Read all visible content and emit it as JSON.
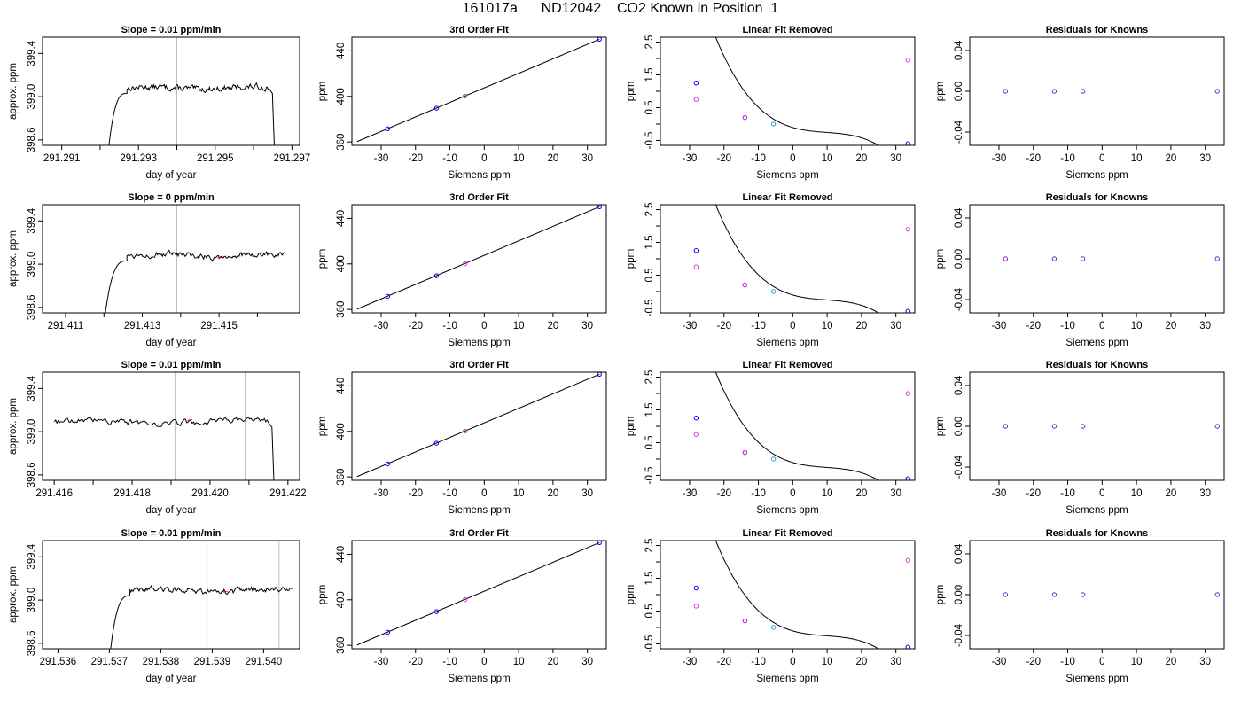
{
  "page_title": "161017a      ND12042    CO2 Known in Position  1",
  "colors": {
    "axis": "#000000",
    "line": "#000000",
    "vline": "#bebebe",
    "blue_point": "#0000ff",
    "cyan_point": "#29a3e0",
    "magenta_point": "#d83bd8",
    "red_point": "#ff0000"
  },
  "chart_data": [
    {
      "type": "line",
      "row": 1,
      "col": 1,
      "title": "Slope =  0.01  ppm/min",
      "xlabel": "day of year",
      "ylabel": "approx. ppm",
      "xlim": [
        291.2905,
        291.2972
      ],
      "ylim": [
        398.55,
        399.55
      ],
      "xticks": [
        "291.291",
        "291.293",
        "291.295",
        "291.297"
      ],
      "xtick_values": [
        291.291,
        291.293,
        291.295,
        291.297
      ],
      "xticks_minor": [
        291.292,
        291.294,
        291.296
      ],
      "yticks": [
        "398.6",
        "399.0",
        "399.4"
      ],
      "ytick_values": [
        398.6,
        399.0,
        399.4
      ],
      "vlines": [
        291.294,
        291.2958
      ],
      "series": [
        {
          "rise_x": [
            291.2922,
            291.2927
          ],
          "plateau_end": 291.2964,
          "drop_x": 291.29655,
          "level": 399.08
        }
      ]
    },
    {
      "type": "scatter",
      "row": 1,
      "col": 2,
      "title": "3rd Order Fit",
      "xlabel": "Siemens ppm",
      "ylabel": "ppm",
      "xlim": [
        -38.5,
        35.5
      ],
      "ylim": [
        357,
        452
      ],
      "xticks": [
        "-30",
        "-20",
        "-10",
        "0",
        "10",
        "20",
        "30"
      ],
      "xtick_values": [
        -30,
        -20,
        -10,
        0,
        10,
        20,
        30
      ],
      "yticks": [
        "360",
        "400",
        "440"
      ],
      "ytick_values": [
        360,
        400,
        440
      ],
      "fit_line": [
        [
          -37,
          360.3
        ],
        [
          33.5,
          450.2
        ]
      ],
      "points": [
        {
          "x": -28.1,
          "y": 371.5,
          "color": "blue"
        },
        {
          "x": -13.9,
          "y": 389.6,
          "color": "blue"
        },
        {
          "x": -5.6,
          "y": 400.2,
          "color": "magenta"
        },
        {
          "x": 33.5,
          "y": 450.2,
          "color": "blue"
        }
      ]
    },
    {
      "type": "scatter",
      "row": 1,
      "col": 3,
      "title": "Linear Fit Removed",
      "xlabel": "Siemens ppm",
      "ylabel": "ppm",
      "xlim": [
        -38.5,
        35.5
      ],
      "ylim": [
        -0.65,
        2.65
      ],
      "xticks": [
        "-30",
        "-20",
        "-10",
        "0",
        "10",
        "20",
        "30"
      ],
      "xtick_values": [
        -30,
        -20,
        -10,
        0,
        10,
        20,
        30
      ],
      "yticks": [
        "-0.5",
        "0.5",
        "1.5",
        "2.5"
      ],
      "ytick_values": [
        -0.5,
        0.5,
        1.5,
        2.5
      ],
      "curve_range": [
        -37,
        33.5
      ],
      "points": [
        {
          "x": -28.1,
          "y": 1.25,
          "color": "blue"
        },
        {
          "x": -28.1,
          "y": 0.75,
          "color": "magenta"
        },
        {
          "x": -13.9,
          "y": 0.2,
          "color": "blue"
        },
        {
          "x": -13.9,
          "y": 0.2,
          "color": "magenta"
        },
        {
          "x": -5.6,
          "y": 0.0,
          "color": "cyan"
        },
        {
          "x": 33.5,
          "y": -0.6,
          "color": "blue"
        },
        {
          "x": 33.5,
          "y": 1.95,
          "color": "magenta"
        }
      ]
    },
    {
      "type": "scatter",
      "row": 1,
      "col": 4,
      "title": "Residuals for Knowns",
      "xlabel": "Siemens ppm",
      "ylabel": "ppm",
      "xlim": [
        -38.5,
        35.5
      ],
      "ylim": [
        -0.053,
        0.053
      ],
      "xticks": [
        "-30",
        "-20",
        "-10",
        "0",
        "10",
        "20",
        "30"
      ],
      "xtick_values": [
        -30,
        -20,
        -10,
        0,
        10,
        20,
        30
      ],
      "yticks": [
        "-0.04",
        "0.00",
        "0.04"
      ],
      "ytick_values": [
        -0.04,
        0.0,
        0.04
      ],
      "points": [
        {
          "x": -28.1,
          "y": 0,
          "color": "purple"
        },
        {
          "x": -13.9,
          "y": 0,
          "color": "purple"
        },
        {
          "x": -5.6,
          "y": 0,
          "color": "purple"
        },
        {
          "x": 33.5,
          "y": 0,
          "color": "purple"
        }
      ]
    },
    {
      "type": "line",
      "row": 2,
      "col": 1,
      "title": "Slope =  0  ppm/min",
      "xlabel": "day of year",
      "ylabel": "approx. ppm",
      "xlim": [
        291.4104,
        291.4171
      ],
      "ylim": [
        398.55,
        399.55
      ],
      "xticks": [
        "291.411",
        "291.413",
        "291.415"
      ],
      "xtick_values": [
        291.411,
        291.413,
        291.415
      ],
      "xticks_minor": [
        291.412,
        291.414,
        291.416
      ],
      "yticks": [
        "398.6",
        "399.0",
        "399.4"
      ],
      "ytick_values": [
        398.6,
        399.0,
        399.4
      ],
      "vlines": [
        291.4139,
        291.4157
      ],
      "series": [
        {
          "rise_x": [
            291.412,
            291.4126
          ],
          "plateau_end": 291.4167,
          "drop_x": null,
          "level": 399.08
        }
      ]
    },
    {
      "type": "scatter",
      "row": 2,
      "col": 2,
      "title": "3rd Order Fit",
      "xlabel": "Siemens ppm",
      "ylabel": "ppm",
      "xlim": [
        -38.5,
        35.5
      ],
      "ylim": [
        357,
        452
      ],
      "xticks": [
        "-30",
        "-20",
        "-10",
        "0",
        "10",
        "20",
        "30"
      ],
      "xtick_values": [
        -30,
        -20,
        -10,
        0,
        10,
        20,
        30
      ],
      "yticks": [
        "360",
        "400",
        "440"
      ],
      "ytick_values": [
        360,
        400,
        440
      ],
      "fit_line": [
        [
          -37,
          360.3
        ],
        [
          33.5,
          450.2
        ]
      ],
      "points": [
        {
          "x": -28.1,
          "y": 371.5,
          "color": "blue"
        },
        {
          "x": -13.9,
          "y": 389.6,
          "color": "blue"
        },
        {
          "x": -5.6,
          "y": 400.2,
          "color": "magenta"
        },
        {
          "x": 33.5,
          "y": 450.2,
          "color": "blue"
        }
      ]
    },
    {
      "type": "scatter",
      "row": 2,
      "col": 3,
      "title": "Linear Fit Removed",
      "xlabel": "Siemens ppm",
      "ylabel": "ppm",
      "xlim": [
        -38.5,
        35.5
      ],
      "ylim": [
        -0.65,
        2.65
      ],
      "xticks": [
        "-30",
        "-20",
        "-10",
        "0",
        "10",
        "20",
        "30"
      ],
      "xtick_values": [
        -30,
        -20,
        -10,
        0,
        10,
        20,
        30
      ],
      "yticks": [
        "-0.5",
        "0.5",
        "1.5",
        "2.5"
      ],
      "ytick_values": [
        -0.5,
        0.5,
        1.5,
        2.5
      ],
      "curve_range": [
        -37,
        33.5
      ],
      "points": [
        {
          "x": -28.1,
          "y": 1.25,
          "color": "blue"
        },
        {
          "x": -28.1,
          "y": 0.75,
          "color": "magenta"
        },
        {
          "x": -13.9,
          "y": 0.2,
          "color": "blue"
        },
        {
          "x": -13.9,
          "y": 0.2,
          "color": "magenta"
        },
        {
          "x": -5.6,
          "y": 0.0,
          "color": "cyan"
        },
        {
          "x": 33.5,
          "y": -0.6,
          "color": "blue"
        },
        {
          "x": 33.5,
          "y": 1.9,
          "color": "magenta"
        }
      ]
    },
    {
      "type": "scatter",
      "row": 2,
      "col": 4,
      "title": "Residuals for Knowns",
      "xlabel": "Siemens ppm",
      "ylabel": "ppm",
      "xlim": [
        -38.5,
        35.5
      ],
      "ylim": [
        -0.053,
        0.053
      ],
      "xticks": [
        "-30",
        "-20",
        "-10",
        "0",
        "10",
        "20",
        "30"
      ],
      "xtick_values": [
        -30,
        -20,
        -10,
        0,
        10,
        20,
        30
      ],
      "yticks": [
        "-0.04",
        "0.00",
        "0.04"
      ],
      "ytick_values": [
        -0.04,
        0.0,
        0.04
      ],
      "points": [
        {
          "x": -28.1,
          "y": 0,
          "color": "purple"
        },
        {
          "x": -13.9,
          "y": 0,
          "color": "purple"
        },
        {
          "x": -5.6,
          "y": 0,
          "color": "purple"
        },
        {
          "x": 33.5,
          "y": 0,
          "color": "purple"
        }
      ]
    },
    {
      "type": "line",
      "row": 3,
      "col": 1,
      "title": "Slope =  0.01  ppm/min",
      "xlabel": "day of year",
      "ylabel": "approx. ppm",
      "xlim": [
        291.4157,
        291.4223
      ],
      "ylim": [
        398.55,
        399.55
      ],
      "xticks": [
        "291.416",
        "291.418",
        "291.420",
        "291.422"
      ],
      "xtick_values": [
        291.416,
        291.418,
        291.42,
        291.422
      ],
      "xticks_minor": [
        291.417,
        291.419,
        291.421
      ],
      "yticks": [
        "398.6",
        "399.0",
        "399.4"
      ],
      "ytick_values": [
        398.6,
        399.0,
        399.4
      ],
      "vlines": [
        291.4191,
        291.4209
      ],
      "series": [
        {
          "rise_x": null,
          "start_x": 291.416,
          "plateau_end": 291.4215,
          "drop_x": 291.42165,
          "level": 399.09
        }
      ]
    },
    {
      "type": "scatter",
      "row": 3,
      "col": 2,
      "title": "3rd Order Fit",
      "xlabel": "Siemens ppm",
      "ylabel": "ppm",
      "xlim": [
        -38.5,
        35.5
      ],
      "ylim": [
        357,
        452
      ],
      "xticks": [
        "-30",
        "-20",
        "-10",
        "0",
        "10",
        "20",
        "30"
      ],
      "xtick_values": [
        -30,
        -20,
        -10,
        0,
        10,
        20,
        30
      ],
      "yticks": [
        "360",
        "400",
        "440"
      ],
      "ytick_values": [
        360,
        400,
        440
      ],
      "fit_line": [
        [
          -37,
          360.3
        ],
        [
          33.5,
          450.2
        ]
      ],
      "points": [
        {
          "x": -28.1,
          "y": 371.5,
          "color": "blue"
        },
        {
          "x": -13.9,
          "y": 389.6,
          "color": "blue"
        },
        {
          "x": -5.6,
          "y": 400.2,
          "color": "magenta"
        },
        {
          "x": 33.5,
          "y": 450.2,
          "color": "blue"
        }
      ]
    },
    {
      "type": "scatter",
      "row": 3,
      "col": 3,
      "title": "Linear Fit Removed",
      "xlabel": "Siemens ppm",
      "ylabel": "ppm",
      "xlim": [
        -38.5,
        35.5
      ],
      "ylim": [
        -0.65,
        2.65
      ],
      "xticks": [
        "-30",
        "-20",
        "-10",
        "0",
        "10",
        "20",
        "30"
      ],
      "xtick_values": [
        -30,
        -20,
        -10,
        0,
        10,
        20,
        30
      ],
      "yticks": [
        "-0.5",
        "0.5",
        "1.5",
        "2.5"
      ],
      "ytick_values": [
        -0.5,
        0.5,
        1.5,
        2.5
      ],
      "curve_range": [
        -37,
        33.5
      ],
      "points": [
        {
          "x": -28.1,
          "y": 1.25,
          "color": "blue"
        },
        {
          "x": -28.1,
          "y": 0.75,
          "color": "magenta"
        },
        {
          "x": -13.9,
          "y": 0.2,
          "color": "blue"
        },
        {
          "x": -13.9,
          "y": 0.2,
          "color": "magenta"
        },
        {
          "x": -5.6,
          "y": 0.0,
          "color": "cyan"
        },
        {
          "x": 33.5,
          "y": -0.6,
          "color": "blue"
        },
        {
          "x": 33.5,
          "y": 2.0,
          "color": "magenta"
        }
      ]
    },
    {
      "type": "scatter",
      "row": 3,
      "col": 4,
      "title": "Residuals for Knowns",
      "xlabel": "Siemens ppm",
      "ylabel": "ppm",
      "xlim": [
        -38.5,
        35.5
      ],
      "ylim": [
        -0.053,
        0.053
      ],
      "xticks": [
        "-30",
        "-20",
        "-10",
        "0",
        "10",
        "20",
        "30"
      ],
      "xtick_values": [
        -30,
        -20,
        -10,
        0,
        10,
        20,
        30
      ],
      "yticks": [
        "-0.04",
        "0.00",
        "0.04"
      ],
      "ytick_values": [
        -0.04,
        0.0,
        0.04
      ],
      "points": [
        {
          "x": -28.1,
          "y": 0,
          "color": "purple"
        },
        {
          "x": -13.9,
          "y": 0,
          "color": "purple"
        },
        {
          "x": -5.6,
          "y": 0,
          "color": "purple"
        },
        {
          "x": 33.5,
          "y": 0,
          "color": "purple"
        }
      ]
    },
    {
      "type": "line",
      "row": 4,
      "col": 1,
      "title": "Slope =  0.01  ppm/min",
      "xlabel": "day of year",
      "ylabel": "approx. ppm",
      "xlim": [
        291.5357,
        291.5407
      ],
      "ylim": [
        398.55,
        399.55
      ],
      "xticks": [
        "291.536",
        "291.537",
        "291.538",
        "291.539",
        "291.540"
      ],
      "xtick_values": [
        291.536,
        291.537,
        291.538,
        291.539,
        291.54
      ],
      "xticks_minor": [],
      "yticks": [
        "398.6",
        "399.0",
        "399.4"
      ],
      "ytick_values": [
        398.6,
        399.0,
        399.4
      ],
      "vlines": [
        291.5389,
        291.5403
      ],
      "series": [
        {
          "rise_x": [
            291.537,
            291.5374
          ],
          "plateau_end": 291.54055,
          "drop_x": null,
          "level": 399.09
        }
      ]
    },
    {
      "type": "scatter",
      "row": 4,
      "col": 2,
      "title": "3rd Order Fit",
      "xlabel": "Siemens ppm",
      "ylabel": "ppm",
      "xlim": [
        -38.5,
        35.5
      ],
      "ylim": [
        357,
        452
      ],
      "xticks": [
        "-30",
        "-20",
        "-10",
        "0",
        "10",
        "20",
        "30"
      ],
      "xtick_values": [
        -30,
        -20,
        -10,
        0,
        10,
        20,
        30
      ],
      "yticks": [
        "360",
        "400",
        "440"
      ],
      "ytick_values": [
        360,
        400,
        440
      ],
      "fit_line": [
        [
          -37,
          360.3
        ],
        [
          33.5,
          450.2
        ]
      ],
      "points": [
        {
          "x": -28.1,
          "y": 371.5,
          "color": "blue"
        },
        {
          "x": -13.9,
          "y": 389.6,
          "color": "blue"
        },
        {
          "x": -5.6,
          "y": 400.2,
          "color": "magenta"
        },
        {
          "x": 33.5,
          "y": 450.2,
          "color": "blue"
        }
      ]
    },
    {
      "type": "scatter",
      "row": 4,
      "col": 3,
      "title": "Linear Fit Removed",
      "xlabel": "Siemens ppm",
      "ylabel": "ppm",
      "xlim": [
        -38.5,
        35.5
      ],
      "ylim": [
        -0.65,
        2.65
      ],
      "xticks": [
        "-30",
        "-20",
        "-10",
        "0",
        "10",
        "20",
        "30"
      ],
      "xtick_values": [
        -30,
        -20,
        -10,
        0,
        10,
        20,
        30
      ],
      "yticks": [
        "-0.5",
        "0.5",
        "1.5",
        "2.5"
      ],
      "ytick_values": [
        -0.5,
        0.5,
        1.5,
        2.5
      ],
      "curve_range": [
        -37,
        33.5
      ],
      "points": [
        {
          "x": -28.1,
          "y": 1.2,
          "color": "blue"
        },
        {
          "x": -28.1,
          "y": 0.65,
          "color": "magenta"
        },
        {
          "x": -13.9,
          "y": 0.2,
          "color": "blue"
        },
        {
          "x": -13.9,
          "y": 0.2,
          "color": "magenta"
        },
        {
          "x": -5.6,
          "y": 0.0,
          "color": "cyan"
        },
        {
          "x": 33.5,
          "y": -0.6,
          "color": "blue"
        },
        {
          "x": 33.5,
          "y": 2.05,
          "color": "magenta"
        }
      ]
    },
    {
      "type": "scatter",
      "row": 4,
      "col": 4,
      "title": "Residuals for Knowns",
      "xlabel": "Siemens ppm",
      "ylabel": "ppm",
      "xlim": [
        -38.5,
        35.5
      ],
      "ylim": [
        -0.053,
        0.053
      ],
      "xticks": [
        "-30",
        "-20",
        "-10",
        "0",
        "10",
        "20",
        "30"
      ],
      "xtick_values": [
        -30,
        -20,
        -10,
        0,
        10,
        20,
        30
      ],
      "yticks": [
        "-0.04",
        "0.00",
        "0.04"
      ],
      "ytick_values": [
        -0.04,
        0.0,
        0.04
      ],
      "points": [
        {
          "x": -28.1,
          "y": 0,
          "color": "purple"
        },
        {
          "x": -13.9,
          "y": 0,
          "color": "purple"
        },
        {
          "x": -5.6,
          "y": 0,
          "color": "purple"
        },
        {
          "x": 33.5,
          "y": 0,
          "color": "purple"
        }
      ]
    }
  ]
}
